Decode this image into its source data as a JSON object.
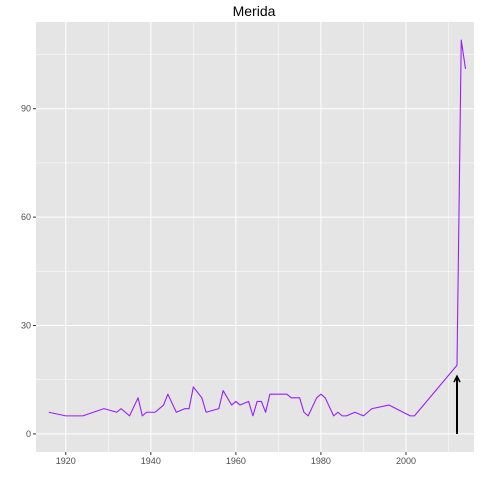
{
  "chart_data": {
    "type": "line",
    "title": "Merida",
    "xlabel": "",
    "ylabel": "",
    "xlim": [
      1913,
      2016
    ],
    "ylim": [
      -5,
      114
    ],
    "x_ticks": [
      1920,
      1940,
      1960,
      1980,
      2000
    ],
    "y_ticks": [
      0,
      30,
      60,
      90
    ],
    "x_tick_labels": [
      "1920",
      "1940",
      "1960",
      "1980",
      "2000"
    ],
    "y_tick_labels": [
      "0",
      "30",
      "60",
      "90"
    ],
    "grid": true,
    "legend": "none",
    "colors": {
      "panel_background": "#e5e5e5",
      "grid_line": "#ffffff",
      "series_line": "#9a1dff",
      "arrow": "#000000",
      "tick_text": "#4d4d4d",
      "tick_mark": "#333333"
    },
    "series": [
      {
        "x": [
          1916,
          1920,
          1924,
          1929,
          1932,
          1933,
          1935,
          1937,
          1938,
          1939,
          1941,
          1943,
          1944,
          1946,
          1948,
          1949,
          1950,
          1952,
          1953,
          1956,
          1957,
          1959,
          1960,
          1961,
          1963,
          1964,
          1965,
          1966,
          1967,
          1968,
          1970,
          1971,
          1972,
          1973,
          1975,
          1976,
          1977,
          1979,
          1980,
          1981,
          1983,
          1984,
          1985,
          1986,
          1988,
          1990,
          1992,
          1996,
          2001,
          2002,
          2012,
          2013,
          2014
        ],
        "y": [
          6,
          5,
          5,
          7,
          6,
          7,
          5,
          10,
          5,
          6,
          6,
          8,
          11,
          6,
          7,
          7,
          13,
          10,
          6,
          7,
          12,
          8,
          9,
          8,
          9,
          5,
          9,
          9,
          6,
          11,
          11,
          11,
          11,
          10,
          10,
          6,
          5,
          10,
          11,
          10,
          5,
          6,
          5,
          5,
          6,
          5,
          7,
          8,
          5,
          5,
          19,
          109,
          101
        ]
      }
    ],
    "annotations": [
      {
        "type": "arrow",
        "x": 2012,
        "y_start": 0,
        "y_end": 16
      }
    ]
  }
}
